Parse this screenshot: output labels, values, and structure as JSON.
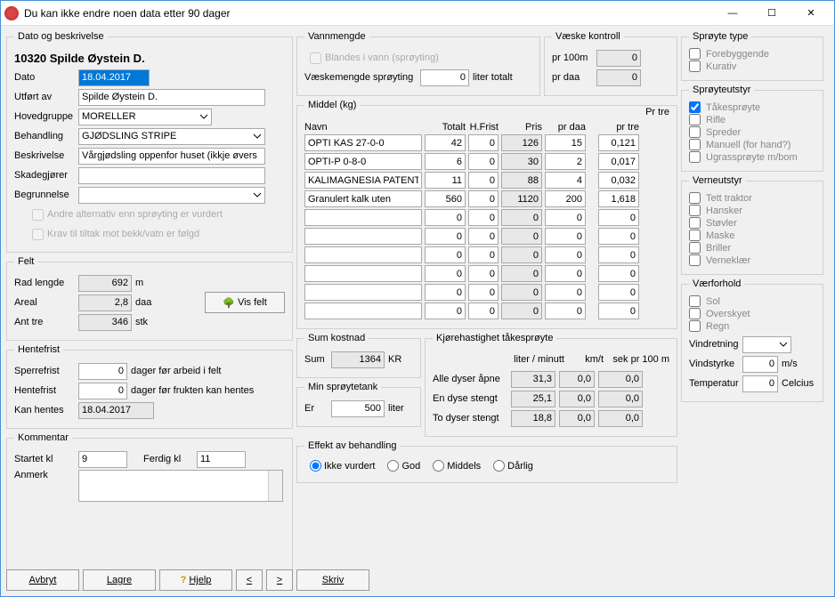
{
  "window": {
    "title": "Du kan ikke endre noen data etter 90 dager"
  },
  "group_dato": {
    "legend": "Dato og beskrivelse",
    "heading": "10320 Spilde Øystein D.",
    "dato_lbl": "Dato",
    "dato_val": "18.04.2017",
    "utfort_lbl": "Utført av",
    "utfort_val": "Spilde Øystein D.",
    "hoved_lbl": "Hovedgruppe",
    "hoved_val": "MORELLER",
    "beh_lbl": "Behandling",
    "beh_val": "GJØDSLING STRIPE",
    "besk_lbl": "Beskrivelse",
    "besk_val": "Vårgjødsling oppenfor huset (ikkje øvers",
    "skad_lbl": "Skadegjører",
    "skad_val": "",
    "begr_lbl": "Begrunnelse",
    "begr_val": "",
    "alt1": "Andre alternativ enn sprøyting er vurdert",
    "alt2": "Krav til tiltak mot bekk/vatn  er følgd"
  },
  "group_felt": {
    "legend": "Felt",
    "rad_lbl": "Rad lengde",
    "rad_val": "692",
    "rad_unit": "m",
    "areal_lbl": "Areal",
    "areal_val": "2,8",
    "areal_unit": "daa",
    "ant_lbl": "Ant tre",
    "ant_val": "346",
    "ant_unit": "stk",
    "visfelt": "Vis felt"
  },
  "group_hente": {
    "legend": "Hentefrist",
    "sper_lbl": "Sperrefrist",
    "sper_val": "0",
    "sper_unit": "dager før arbeid i felt",
    "hent_lbl": "Hentefrist",
    "hent_val": "0",
    "hent_unit": "dager før frukten kan hentes",
    "kan_lbl": "Kan hentes",
    "kan_val": "18.04.2017"
  },
  "group_komm": {
    "legend": "Kommentar",
    "start_lbl": "Startet kl",
    "start_val": "9",
    "ferdig_lbl": "Ferdig kl",
    "ferdig_val": "11",
    "anm_lbl": "Anmerk"
  },
  "group_vann": {
    "legend": "Vannmengde",
    "blandes": "Blandes i vann (sprøyting)",
    "vm_lbl": "Væskemengde sprøyting",
    "vm_val": "0",
    "vm_unit": "liter totalt"
  },
  "group_vaeske": {
    "legend": "Væske kontroll",
    "p100_lbl": "pr 100m",
    "p100_val": "0",
    "pdaa_lbl": "pr daa",
    "pdaa_val": "0"
  },
  "group_middel": {
    "legend": "Middel (kg)",
    "h_navn": "Navn",
    "h_tot": "Totalt",
    "h_hf": "H.Frist",
    "h_pris": "Pris",
    "h_daa": "pr daa",
    "h_tre_out": "Pr tre",
    "h_tre": "pr tre",
    "rows": [
      {
        "name": "OPTI KAS 27-0-0",
        "tot": "42",
        "hf": "0",
        "pris": "126",
        "daa": "15",
        "tre": "0,121"
      },
      {
        "name": "OPTI-P 0-8-0",
        "tot": "6",
        "hf": "0",
        "pris": "30",
        "daa": "2",
        "tre": "0,017"
      },
      {
        "name": "KALIMAGNESIA PATENT",
        "tot": "11",
        "hf": "0",
        "pris": "88",
        "daa": "4",
        "tre": "0,032"
      },
      {
        "name": "Granulert kalk uten",
        "tot": "560",
        "hf": "0",
        "pris": "1120",
        "daa": "200",
        "tre": "1,618"
      },
      {
        "name": "",
        "tot": "0",
        "hf": "0",
        "pris": "0",
        "daa": "0",
        "tre": "0"
      },
      {
        "name": "",
        "tot": "0",
        "hf": "0",
        "pris": "0",
        "daa": "0",
        "tre": "0"
      },
      {
        "name": "",
        "tot": "0",
        "hf": "0",
        "pris": "0",
        "daa": "0",
        "tre": "0"
      },
      {
        "name": "",
        "tot": "0",
        "hf": "0",
        "pris": "0",
        "daa": "0",
        "tre": "0"
      },
      {
        "name": "",
        "tot": "0",
        "hf": "0",
        "pris": "0",
        "daa": "0",
        "tre": "0"
      },
      {
        "name": "",
        "tot": "0",
        "hf": "0",
        "pris": "0",
        "daa": "0",
        "tre": "0"
      }
    ]
  },
  "group_sum": {
    "legend": "Sum kostnad",
    "sum_lbl": "Sum",
    "sum_val": "1364",
    "sum_unit": "KR"
  },
  "group_kjore": {
    "legend": "Kjørehastighet tåkesprøyte",
    "h1": "liter / minutt",
    "h2": "km/t",
    "h3": "sek pr 100 m",
    "r1_lbl": "Alle dyser åpne",
    "r1_v1": "31,3",
    "r1_v2": "0,0",
    "r1_v3": "0,0",
    "r2_lbl": "En dyse stengt",
    "r2_v1": "25,1",
    "r2_v2": "0,0",
    "r2_v3": "0,0",
    "r3_lbl": "To dyser stengt",
    "r3_v1": "18,8",
    "r3_v2": "0,0",
    "r3_v3": "0,0"
  },
  "group_min": {
    "legend": "Min sprøytetank",
    "er_lbl": "Er",
    "er_val": "500",
    "er_unit": "liter"
  },
  "group_eff": {
    "legend": "Effekt av behandling",
    "o1": "Ikke vurdert",
    "o2": "God",
    "o3": "Middels",
    "o4": "Dårlig"
  },
  "group_stype": {
    "legend": "Sprøyte type",
    "o1": "Forebyggende",
    "o2": "Kurativ"
  },
  "group_sutstyr": {
    "legend": "Sprøyteutstyr",
    "o1": "Tåkesprøyte",
    "o2": "Rifle",
    "o3": "Spreder",
    "o4": "Manuell (for hand?)",
    "o5": "Ugrassprøyte m/bom"
  },
  "group_verne": {
    "legend": "Verneutstyr",
    "o1": "Tett traktor",
    "o2": "Hansker",
    "o3": "Støvler",
    "o4": "Maske",
    "o5": "Briller",
    "o6": "Verneklær"
  },
  "group_vaer": {
    "legend": "Værforhold",
    "o1": "Sol",
    "o2": "Overskyet",
    "o3": "Regn",
    "vr_lbl": "Vindretning",
    "vs_lbl": "Vindstyrke",
    "vs_val": "0",
    "vs_unit": "m/s",
    "tmp_lbl": "Temperatur",
    "tmp_val": "0",
    "tmp_unit": "Celcius"
  },
  "footer": {
    "avbryt": "Avbryt",
    "lagre": "Lagre",
    "hjelp": "Hjelp",
    "prev": "<",
    "next": ">",
    "skriv": "Skriv"
  }
}
